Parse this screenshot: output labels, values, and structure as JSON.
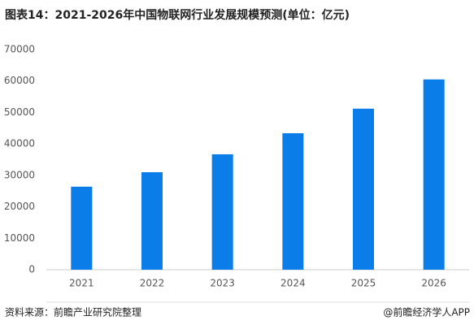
{
  "chart_data": {
    "type": "bar",
    "title": "图表14：2021-2026年中国物联网行业发展规模预测(单位：亿元)",
    "categories": [
      "2021",
      "2022",
      "2023",
      "2024",
      "2025",
      "2026"
    ],
    "values": [
      26400,
      31000,
      36700,
      43400,
      51200,
      60500
    ],
    "color": "#0a7de8",
    "ylim": [
      0,
      70000
    ],
    "yticks": [
      0,
      10000,
      20000,
      30000,
      40000,
      50000,
      60000,
      70000
    ],
    "grid": false,
    "source": "资料来源：前瞻产业研究院整理",
    "credit": "@前瞻经济学人APP"
  }
}
